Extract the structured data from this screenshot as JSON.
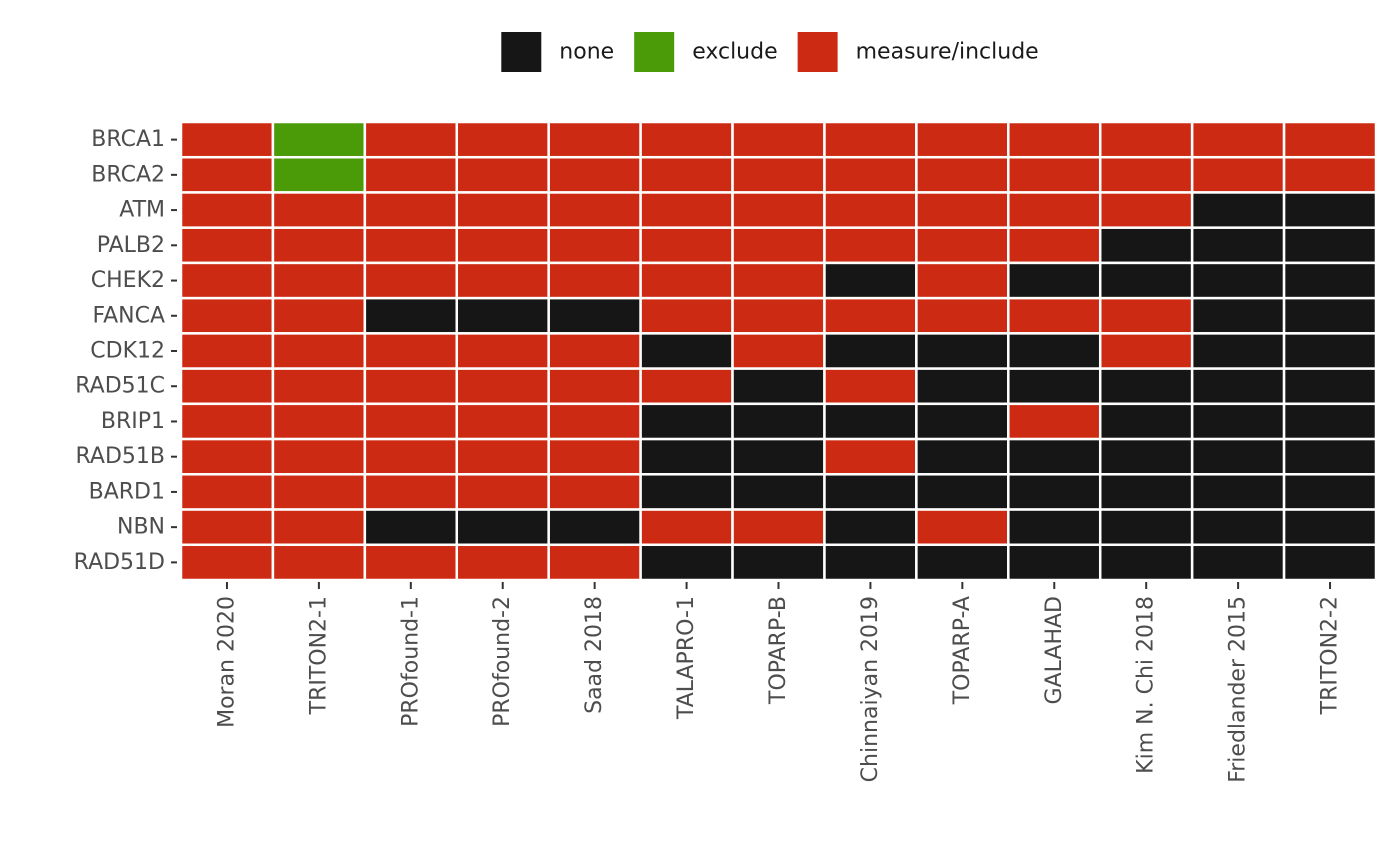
{
  "chart_data": {
    "type": "heatmap",
    "title": "",
    "xlabel": "",
    "ylabel": "",
    "legend": {
      "position": "top",
      "entries": [
        {
          "key": "none",
          "label": "none",
          "color": "#161616"
        },
        {
          "key": "exclude",
          "label": "exclude",
          "color": "#4b9a07"
        },
        {
          "key": "measure/include",
          "label": "measure/include",
          "color": "#cd2a14"
        }
      ]
    },
    "x_categories": [
      "Moran 2020",
      "TRITON2-1",
      "PROfound-1",
      "PROfound-2",
      "Saad 2018",
      "TALAPRO-1",
      "TOPARP-B",
      "Chinnaiyan 2019",
      "TOPARP-A",
      "GALAHAD",
      "Kim N. Chi 2018",
      "Friedlander 2015",
      "TRITON2-2"
    ],
    "y_categories": [
      "BRCA1",
      "BRCA2",
      "ATM",
      "PALB2",
      "CHEK2",
      "FANCA",
      "CDK12",
      "RAD51C",
      "BRIP1",
      "RAD51B",
      "BARD1",
      "NBN",
      "RAD51D"
    ],
    "values": [
      [
        "measure/include",
        "exclude",
        "measure/include",
        "measure/include",
        "measure/include",
        "measure/include",
        "measure/include",
        "measure/include",
        "measure/include",
        "measure/include",
        "measure/include",
        "measure/include",
        "measure/include"
      ],
      [
        "measure/include",
        "exclude",
        "measure/include",
        "measure/include",
        "measure/include",
        "measure/include",
        "measure/include",
        "measure/include",
        "measure/include",
        "measure/include",
        "measure/include",
        "measure/include",
        "measure/include"
      ],
      [
        "measure/include",
        "measure/include",
        "measure/include",
        "measure/include",
        "measure/include",
        "measure/include",
        "measure/include",
        "measure/include",
        "measure/include",
        "measure/include",
        "measure/include",
        "none",
        "none"
      ],
      [
        "measure/include",
        "measure/include",
        "measure/include",
        "measure/include",
        "measure/include",
        "measure/include",
        "measure/include",
        "measure/include",
        "measure/include",
        "measure/include",
        "none",
        "none",
        "none"
      ],
      [
        "measure/include",
        "measure/include",
        "measure/include",
        "measure/include",
        "measure/include",
        "measure/include",
        "measure/include",
        "none",
        "measure/include",
        "none",
        "none",
        "none",
        "none"
      ],
      [
        "measure/include",
        "measure/include",
        "none",
        "none",
        "none",
        "measure/include",
        "measure/include",
        "measure/include",
        "measure/include",
        "measure/include",
        "measure/include",
        "none",
        "none"
      ],
      [
        "measure/include",
        "measure/include",
        "measure/include",
        "measure/include",
        "measure/include",
        "none",
        "measure/include",
        "none",
        "none",
        "none",
        "measure/include",
        "none",
        "none"
      ],
      [
        "measure/include",
        "measure/include",
        "measure/include",
        "measure/include",
        "measure/include",
        "measure/include",
        "none",
        "measure/include",
        "none",
        "none",
        "none",
        "none",
        "none"
      ],
      [
        "measure/include",
        "measure/include",
        "measure/include",
        "measure/include",
        "measure/include",
        "none",
        "none",
        "none",
        "none",
        "measure/include",
        "none",
        "none",
        "none"
      ],
      [
        "measure/include",
        "measure/include",
        "measure/include",
        "measure/include",
        "measure/include",
        "none",
        "none",
        "measure/include",
        "none",
        "none",
        "none",
        "none",
        "none"
      ],
      [
        "measure/include",
        "measure/include",
        "measure/include",
        "measure/include",
        "measure/include",
        "none",
        "none",
        "none",
        "none",
        "none",
        "none",
        "none",
        "none"
      ],
      [
        "measure/include",
        "measure/include",
        "none",
        "none",
        "none",
        "measure/include",
        "measure/include",
        "none",
        "measure/include",
        "none",
        "none",
        "none",
        "none"
      ],
      [
        "measure/include",
        "measure/include",
        "measure/include",
        "measure/include",
        "measure/include",
        "none",
        "none",
        "none",
        "none",
        "none",
        "none",
        "none",
        "none"
      ]
    ],
    "grid": false,
    "tile_border_color": "#ffffff",
    "axis_text_color": "#4d4d4d"
  }
}
